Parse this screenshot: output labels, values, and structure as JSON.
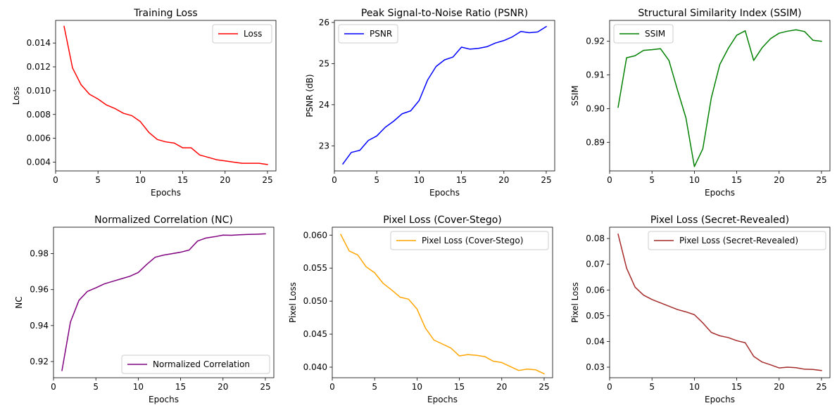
{
  "chart_data": [
    {
      "type": "line",
      "title": "Training Loss",
      "xlabel": "Epochs",
      "ylabel": "Loss",
      "xlim": [
        0,
        26
      ],
      "ylim": [
        0.00326,
        0.0159
      ],
      "xticks": [
        0,
        5,
        10,
        15,
        20,
        25
      ],
      "xtick_labels": [
        "0",
        "5",
        "10",
        "15",
        "20",
        "25"
      ],
      "yticks": [
        0.004,
        0.006,
        0.008,
        0.01,
        0.012,
        0.014
      ],
      "ytick_labels": [
        "0.004",
        "0.006",
        "0.008",
        "0.010",
        "0.012",
        "0.014"
      ],
      "legend_position": "top-right",
      "grid": false,
      "series": [
        {
          "name": "Loss",
          "color": "#ff0000",
          "x": [
            1,
            2,
            3,
            4,
            5,
            6,
            7,
            8,
            9,
            10,
            11,
            12,
            13,
            14,
            15,
            16,
            17,
            18,
            19,
            20,
            21,
            22,
            23,
            24,
            25
          ],
          "values": [
            0.0154,
            0.0119,
            0.0105,
            0.0097,
            0.0093,
            0.0088,
            0.0085,
            0.0081,
            0.0079,
            0.0074,
            0.0065,
            0.0059,
            0.0057,
            0.0056,
            0.0052,
            0.0052,
            0.0046,
            0.0044,
            0.0042,
            0.0041,
            0.004,
            0.0039,
            0.0039,
            0.0039,
            0.0038
          ]
        }
      ]
    },
    {
      "type": "line",
      "title": "Peak Signal-to-Noise Ratio (PSNR)",
      "xlabel": "Epochs",
      "ylabel": "PSNR (dB)",
      "xlim": [
        0,
        26
      ],
      "ylim": [
        22.39,
        26.05
      ],
      "xticks": [
        0,
        5,
        10,
        15,
        20,
        25
      ],
      "xtick_labels": [
        "0",
        "5",
        "10",
        "15",
        "20",
        "25"
      ],
      "yticks": [
        23,
        24,
        25,
        26
      ],
      "ytick_labels": [
        "23",
        "24",
        "25",
        "26"
      ],
      "legend_position": "top-left",
      "grid": false,
      "series": [
        {
          "name": "PSNR",
          "color": "#0000ff",
          "x": [
            1,
            2,
            3,
            4,
            5,
            6,
            7,
            8,
            9,
            10,
            11,
            12,
            13,
            14,
            15,
            16,
            17,
            18,
            19,
            20,
            21,
            22,
            23,
            24,
            25
          ],
          "values": [
            22.56,
            22.84,
            22.89,
            23.13,
            23.24,
            23.45,
            23.6,
            23.78,
            23.85,
            24.1,
            24.6,
            24.93,
            25.09,
            25.16,
            25.4,
            25.35,
            25.37,
            25.41,
            25.5,
            25.56,
            25.65,
            25.78,
            25.75,
            25.77,
            25.9
          ]
        }
      ]
    },
    {
      "type": "line",
      "title": "Structural Similarity Index (SSIM)",
      "xlabel": "Epochs",
      "ylabel": "SSIM",
      "xlim": [
        0,
        26
      ],
      "ylim": [
        0.8815,
        0.9262
      ],
      "xticks": [
        0,
        5,
        10,
        15,
        20,
        25
      ],
      "xtick_labels": [
        "0",
        "5",
        "10",
        "15",
        "20",
        "25"
      ],
      "yticks": [
        0.89,
        0.9,
        0.91,
        0.92
      ],
      "ytick_labels": [
        "0.89",
        "0.90",
        "0.91",
        "0.92"
      ],
      "legend_position": "top-left",
      "grid": false,
      "series": [
        {
          "name": "SSIM",
          "color": "#008000",
          "x": [
            1,
            2,
            3,
            4,
            5,
            6,
            7,
            8,
            9,
            10,
            11,
            12,
            13,
            14,
            15,
            16,
            17,
            18,
            19,
            20,
            21,
            22,
            23,
            24,
            25
          ],
          "values": [
            0.9004,
            0.9151,
            0.9157,
            0.9173,
            0.9175,
            0.9178,
            0.9143,
            0.9056,
            0.8973,
            0.8828,
            0.8881,
            0.9032,
            0.9131,
            0.9179,
            0.9218,
            0.9231,
            0.9143,
            0.9181,
            0.9208,
            0.9224,
            0.923,
            0.9234,
            0.9229,
            0.9203,
            0.92
          ]
        }
      ]
    },
    {
      "type": "line",
      "title": "Normalized Correlation (NC)",
      "xlabel": "Epochs",
      "ylabel": "NC",
      "xlim": [
        0,
        26
      ],
      "ylim": [
        0.911,
        0.9947
      ],
      "xticks": [
        0,
        5,
        10,
        15,
        20,
        25
      ],
      "xtick_labels": [
        "0",
        "5",
        "10",
        "15",
        "20",
        "25"
      ],
      "yticks": [
        0.92,
        0.94,
        0.96,
        0.98
      ],
      "ytick_labels": [
        "0.92",
        "0.94",
        "0.96",
        "0.98"
      ],
      "legend_position": "bottom-right",
      "grid": false,
      "series": [
        {
          "name": "Normalized Correlation",
          "color": "#800080",
          "x": [
            1,
            2,
            3,
            4,
            5,
            6,
            7,
            8,
            9,
            10,
            11,
            12,
            13,
            14,
            15,
            16,
            17,
            18,
            19,
            20,
            21,
            22,
            23,
            24,
            25
          ],
          "values": [
            0.915,
            0.942,
            0.954,
            0.959,
            0.961,
            0.9632,
            0.9646,
            0.966,
            0.9674,
            0.9695,
            0.974,
            0.978,
            0.9792,
            0.98,
            0.9808,
            0.982,
            0.987,
            0.9887,
            0.9894,
            0.9903,
            0.9902,
            0.9905,
            0.9907,
            0.9908,
            0.991
          ]
        }
      ]
    },
    {
      "type": "line",
      "title": "Pixel Loss (Cover-Stego)",
      "xlabel": "Epochs",
      "ylabel": "Pixel Loss",
      "xlim": [
        0,
        26
      ],
      "ylim": [
        0.0384,
        0.0612
      ],
      "xticks": [
        0,
        5,
        10,
        15,
        20,
        25
      ],
      "xtick_labels": [
        "0",
        "5",
        "10",
        "15",
        "20",
        "25"
      ],
      "yticks": [
        0.04,
        0.045,
        0.05,
        0.055,
        0.06
      ],
      "ytick_labels": [
        "0.040",
        "0.045",
        "0.050",
        "0.055",
        "0.060"
      ],
      "legend_position": "top-right",
      "grid": false,
      "series": [
        {
          "name": "Pixel Loss (Cover-Stego)",
          "color": "#ffa500",
          "x": [
            1,
            2,
            3,
            4,
            5,
            6,
            7,
            8,
            9,
            10,
            11,
            12,
            13,
            14,
            15,
            16,
            17,
            18,
            19,
            20,
            21,
            22,
            23,
            24,
            25
          ],
          "values": [
            0.0601,
            0.0576,
            0.057,
            0.0552,
            0.0543,
            0.0527,
            0.0517,
            0.0506,
            0.0503,
            0.0488,
            0.0459,
            0.0441,
            0.0435,
            0.0429,
            0.0417,
            0.0419,
            0.0418,
            0.0416,
            0.0409,
            0.0407,
            0.0401,
            0.0395,
            0.0397,
            0.0396,
            0.039
          ]
        }
      ]
    },
    {
      "type": "line",
      "title": "Pixel Loss (Secret-Revealed)",
      "xlabel": "Epochs",
      "ylabel": "Pixel Loss",
      "xlim": [
        0,
        26
      ],
      "ylim": [
        0.0259,
        0.0844
      ],
      "xticks": [
        0,
        5,
        10,
        15,
        20,
        25
      ],
      "xtick_labels": [
        "0",
        "5",
        "10",
        "15",
        "20",
        "25"
      ],
      "yticks": [
        0.03,
        0.04,
        0.05,
        0.06,
        0.07,
        0.08
      ],
      "ytick_labels": [
        "0.03",
        "0.04",
        "0.05",
        "0.06",
        "0.07",
        "0.08"
      ],
      "legend_position": "top-right",
      "grid": false,
      "series": [
        {
          "name": "Pixel Loss (Secret-Revealed)",
          "color": "#a52a2a",
          "x": [
            1,
            2,
            3,
            4,
            5,
            6,
            7,
            8,
            9,
            10,
            11,
            12,
            13,
            14,
            15,
            16,
            17,
            18,
            19,
            20,
            21,
            22,
            23,
            24,
            25
          ],
          "values": [
            0.0817,
            0.0685,
            0.0611,
            0.058,
            0.0563,
            0.055,
            0.0537,
            0.0524,
            0.0515,
            0.0504,
            0.0472,
            0.0435,
            0.0422,
            0.0415,
            0.0403,
            0.0395,
            0.0342,
            0.032,
            0.0309,
            0.0297,
            0.03,
            0.0298,
            0.0292,
            0.0291,
            0.0287
          ]
        }
      ]
    }
  ]
}
